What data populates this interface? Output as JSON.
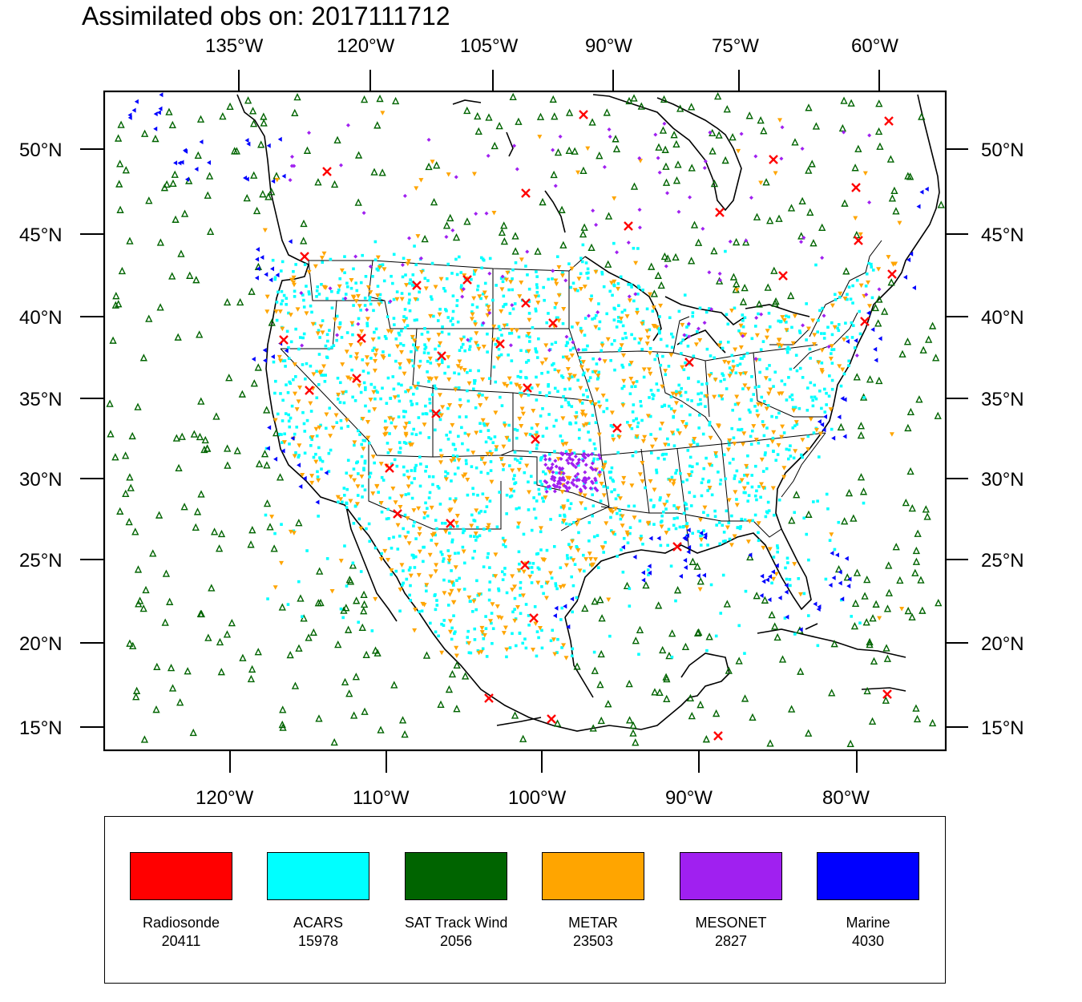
{
  "title": "Assimilated obs on: 2017111712",
  "top_axis_labels": [
    "135°W",
    "120°W",
    "105°W",
    "90°W",
    "75°W",
    "60°W"
  ],
  "bottom_axis_labels": [
    "120°W",
    "110°W",
    "100°W",
    "90°W",
    "80°W"
  ],
  "lat_labels": [
    "50°N",
    "45°N",
    "40°N",
    "35°N",
    "30°N",
    "25°N",
    "20°N",
    "15°N"
  ],
  "legend": [
    {
      "name": "Radiosonde",
      "count": "20411",
      "color": "#ff0000"
    },
    {
      "name": "ACARS",
      "count": "15978",
      "color": "#00ffff"
    },
    {
      "name": "SAT Track Wind",
      "count": "2056",
      "color": "#006400"
    },
    {
      "name": "METAR",
      "count": "23503",
      "color": "#ffa500"
    },
    {
      "name": "MESONET",
      "count": "2827",
      "color": "#a020f0"
    },
    {
      "name": "Marine",
      "count": "4030",
      "color": "#0000ff"
    }
  ],
  "colors": {
    "frame": "#000000",
    "coast": "#000000"
  }
}
